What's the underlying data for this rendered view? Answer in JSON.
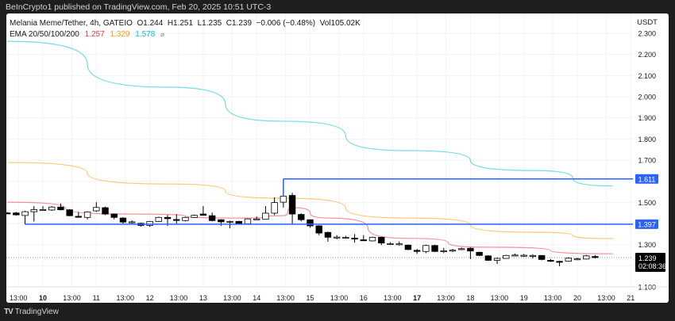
{
  "publisher_line": "BeInCrypto1 published on TradingView.com, Feb 20, 2025 10:51 UTC-3",
  "legend": {
    "symbol": "Melania Meme/Tether, 4h, GATEIO",
    "ohlc": "O1.244  H1.251  L1.235  C1.239  −0.006 (−0.48%)  Vol105.02K",
    "ema_label": "EMA 20/50/100/200",
    "ema_values": [
      "1.257",
      "1.329",
      "1.578"
    ],
    "ema_colors": [
      "#f23645",
      "#ff9800",
      "#00bcd4"
    ],
    "ema_icon": "eye-off-icon"
  },
  "price_axis": {
    "unit": "USDT",
    "ticks": [
      "2.300",
      "2.200",
      "2.100",
      "2.000",
      "1.900",
      "1.800",
      "1.700",
      "1.500",
      "1.300",
      "1.100"
    ],
    "current_price": "1.239",
    "countdown": "02:08:36"
  },
  "levels": [
    {
      "price": 1.611,
      "label": "1.611",
      "from": "2025-02-14T12:00",
      "color": "#2962ff"
    },
    {
      "price": 1.397,
      "label": "1.397",
      "from": "2025-02-09T16:00",
      "color": "#2962ff"
    }
  ],
  "time_axis": [
    {
      "label": "13:00",
      "t": "2025-02-09T13:00",
      "bold": false
    },
    {
      "label": "10",
      "t": "2025-02-10T00:00",
      "bold": true
    },
    {
      "label": "13:00",
      "t": "2025-02-10T13:00",
      "bold": false
    },
    {
      "label": "11",
      "t": "2025-02-11T00:00",
      "bold": false
    },
    {
      "label": "13:00",
      "t": "2025-02-11T13:00",
      "bold": false
    },
    {
      "label": "12",
      "t": "2025-02-12T00:00",
      "bold": false
    },
    {
      "label": "13:00",
      "t": "2025-02-12T13:00",
      "bold": false
    },
    {
      "label": "13",
      "t": "2025-02-13T00:00",
      "bold": false
    },
    {
      "label": "13:00",
      "t": "2025-02-13T13:00",
      "bold": false
    },
    {
      "label": "14",
      "t": "2025-02-14T00:00",
      "bold": false
    },
    {
      "label": "13:00",
      "t": "2025-02-14T13:00",
      "bold": false
    },
    {
      "label": "15",
      "t": "2025-02-15T00:00",
      "bold": false
    },
    {
      "label": "13:00",
      "t": "2025-02-15T13:00",
      "bold": false
    },
    {
      "label": "16",
      "t": "2025-02-16T00:00",
      "bold": false
    },
    {
      "label": "13:00",
      "t": "2025-02-16T13:00",
      "bold": false
    },
    {
      "label": "17",
      "t": "2025-02-17T00:00",
      "bold": true
    },
    {
      "label": "13:00",
      "t": "2025-02-17T13:00",
      "bold": false
    },
    {
      "label": "18",
      "t": "2025-02-18T00:00",
      "bold": false
    },
    {
      "label": "13:00",
      "t": "2025-02-18T13:00",
      "bold": false
    },
    {
      "label": "19",
      "t": "2025-02-19T00:00",
      "bold": false
    },
    {
      "label": "13:00",
      "t": "2025-02-19T13:00",
      "bold": false
    },
    {
      "label": "20",
      "t": "2025-02-20T00:00",
      "bold": false
    },
    {
      "label": "13:00",
      "t": "2025-02-20T13:00",
      "bold": false
    },
    {
      "label": "21",
      "t": "2025-02-21T00:00",
      "bold": false
    }
  ],
  "footer_logo": "TradingView",
  "chart_data": {
    "type": "candlestick",
    "interval": "4h",
    "start": "2025-02-09T08:00",
    "ylim": [
      1.05,
      2.35
    ],
    "grid": true,
    "candles_ohlc": [
      [
        1.45,
        1.455,
        1.445,
        1.449
      ],
      [
        1.45,
        1.455,
        1.438,
        1.441
      ],
      [
        1.438,
        1.46,
        1.396,
        1.456
      ],
      [
        1.456,
        1.482,
        1.41,
        1.466
      ],
      [
        1.466,
        1.482,
        1.46,
        1.466
      ],
      [
        1.464,
        1.482,
        1.46,
        1.478
      ],
      [
        1.478,
        1.495,
        1.462,
        1.465
      ],
      [
        1.465,
        1.468,
        1.435,
        1.437
      ],
      [
        1.434,
        1.455,
        1.43,
        1.433
      ],
      [
        1.429,
        1.458,
        1.42,
        1.455
      ],
      [
        1.46,
        1.501,
        1.455,
        1.476
      ],
      [
        1.475,
        1.48,
        1.44,
        1.445
      ],
      [
        1.445,
        1.448,
        1.42,
        1.429
      ],
      [
        1.426,
        1.43,
        1.4,
        1.407
      ],
      [
        1.408,
        1.415,
        1.4,
        1.408
      ],
      [
        1.401,
        1.404,
        1.385,
        1.391
      ],
      [
        1.391,
        1.412,
        1.385,
        1.41
      ],
      [
        1.41,
        1.432,
        1.408,
        1.429
      ],
      [
        1.429,
        1.44,
        1.389,
        1.423
      ],
      [
        1.419,
        1.444,
        1.399,
        1.418
      ],
      [
        1.414,
        1.432,
        1.41,
        1.429
      ],
      [
        1.429,
        1.442,
        1.427,
        1.439
      ],
      [
        1.445,
        1.483,
        1.437,
        1.439
      ],
      [
        1.437,
        1.452,
        1.41,
        1.414
      ],
      [
        1.418,
        1.42,
        1.389,
        1.408
      ],
      [
        1.41,
        1.414,
        1.378,
        1.41
      ],
      [
        1.41,
        1.413,
        1.396,
        1.399
      ],
      [
        1.399,
        1.424,
        1.397,
        1.422
      ],
      [
        1.422,
        1.433,
        1.418,
        1.422
      ],
      [
        1.42,
        1.483,
        1.418,
        1.449
      ],
      [
        1.449,
        1.524,
        1.44,
        1.499
      ],
      [
        1.501,
        1.611,
        1.476,
        1.529
      ],
      [
        1.533,
        1.545,
        1.397,
        1.445
      ],
      [
        1.443,
        1.448,
        1.41,
        1.418
      ],
      [
        1.418,
        1.42,
        1.38,
        1.389
      ],
      [
        1.389,
        1.392,
        1.345,
        1.355
      ],
      [
        1.358,
        1.362,
        1.314,
        1.335
      ],
      [
        1.335,
        1.345,
        1.326,
        1.336
      ],
      [
        1.335,
        1.342,
        1.328,
        1.335
      ],
      [
        1.331,
        1.35,
        1.31,
        1.33
      ],
      [
        1.323,
        1.345,
        1.318,
        1.322
      ],
      [
        1.318,
        1.338,
        1.315,
        1.335
      ],
      [
        1.335,
        1.338,
        1.298,
        1.308
      ],
      [
        1.304,
        1.312,
        1.298,
        1.305
      ],
      [
        1.304,
        1.315,
        1.296,
        1.304
      ],
      [
        1.298,
        1.3,
        1.274,
        1.277
      ],
      [
        1.273,
        1.28,
        1.256,
        1.268
      ],
      [
        1.268,
        1.3,
        1.26,
        1.296
      ],
      [
        1.296,
        1.3,
        1.265,
        1.268
      ],
      [
        1.27,
        1.285,
        1.26,
        1.271
      ],
      [
        1.272,
        1.28,
        1.265,
        1.274
      ],
      [
        1.28,
        1.286,
        1.274,
        1.281
      ],
      [
        1.283,
        1.287,
        1.232,
        1.27
      ],
      [
        1.264,
        1.267,
        1.246,
        1.249
      ],
      [
        1.247,
        1.25,
        1.223,
        1.226
      ],
      [
        1.226,
        1.24,
        1.209,
        1.235
      ],
      [
        1.235,
        1.252,
        1.233,
        1.249
      ],
      [
        1.251,
        1.258,
        1.245,
        1.251
      ],
      [
        1.249,
        1.256,
        1.243,
        1.25
      ],
      [
        1.249,
        1.254,
        1.235,
        1.249
      ],
      [
        1.249,
        1.251,
        1.226,
        1.23
      ],
      [
        1.226,
        1.232,
        1.218,
        1.225
      ],
      [
        1.221,
        1.224,
        1.198,
        1.22
      ],
      [
        1.222,
        1.24,
        1.22,
        1.236
      ],
      [
        1.232,
        1.238,
        1.226,
        1.233
      ],
      [
        1.232,
        1.252,
        1.23,
        1.247
      ],
      [
        1.244,
        1.251,
        1.235,
        1.239
      ]
    ],
    "ema_series": [
      {
        "name": "EMA 20/50",
        "color": "#f23645",
        "points": [
          [
            "2025-02-09T08:00",
            1.501
          ],
          [
            "2025-02-11T12:00",
            1.445
          ],
          [
            "2025-02-13T20:00",
            1.426
          ],
          [
            "2025-02-14T12:00",
            1.437
          ],
          [
            "2025-02-14T16:00",
            1.475
          ],
          [
            "2025-02-15T08:00",
            1.426
          ],
          [
            "2025-02-16T20:00",
            1.33
          ],
          [
            "2025-02-18T08:00",
            1.288
          ],
          [
            "2025-02-20T16:00",
            1.257
          ]
        ]
      },
      {
        "name": "EMA 100",
        "color": "#ff9800",
        "points": [
          [
            "2025-02-09T08:00",
            1.689
          ],
          [
            "2025-02-12T08:00",
            1.587
          ],
          [
            "2025-02-14T12:00",
            1.52
          ],
          [
            "2025-02-16T20:00",
            1.426
          ],
          [
            "2025-02-19T04:00",
            1.359
          ],
          [
            "2025-02-20T16:00",
            1.329
          ]
        ]
      },
      {
        "name": "EMA 200",
        "color": "#00bcd4",
        "points": [
          [
            "2025-02-09T08:00",
            2.262
          ],
          [
            "2025-02-12T08:00",
            2.045
          ],
          [
            "2025-02-14T12:00",
            1.884
          ],
          [
            "2025-02-16T20:00",
            1.745
          ],
          [
            "2025-02-19T04:00",
            1.651
          ],
          [
            "2025-02-20T16:00",
            1.578
          ]
        ]
      }
    ]
  }
}
